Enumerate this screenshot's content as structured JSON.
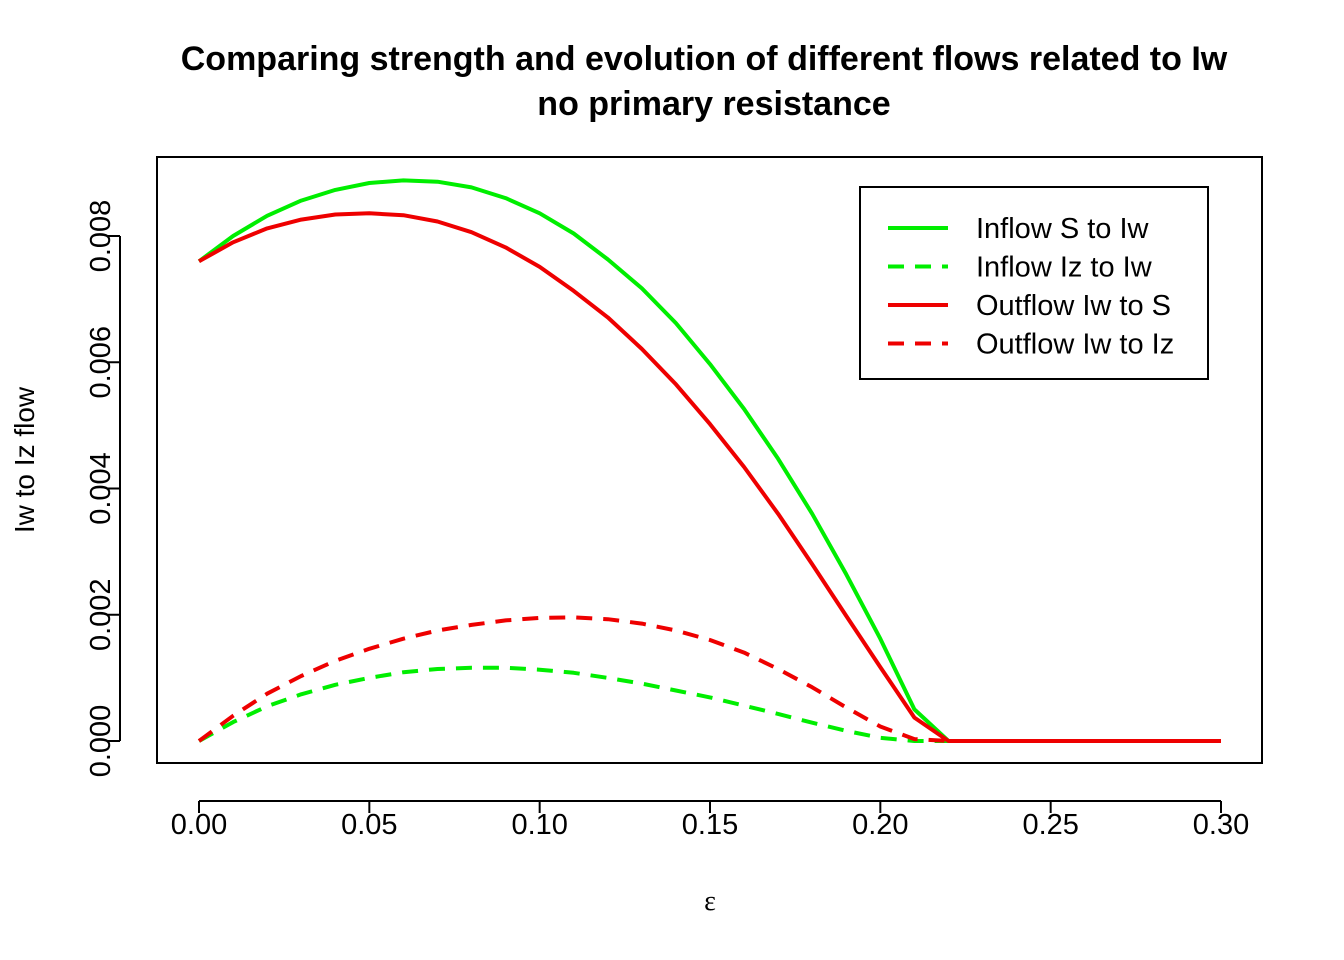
{
  "chart_data": {
    "type": "line",
    "title": "Comparing strength and evolution of different flows related to Iw",
    "subtitle": "no primary resistance",
    "xlabel": "ε",
    "ylabel": "Iw to Iz flow",
    "xlim": [
      0.0,
      0.3
    ],
    "ylim": [
      0.0,
      0.009
    ],
    "x_ticks": [
      "0.00",
      "0.05",
      "0.10",
      "0.15",
      "0.20",
      "0.25",
      "0.30"
    ],
    "y_ticks": [
      "0.000",
      "0.002",
      "0.004",
      "0.006",
      "0.008"
    ],
    "grid": false,
    "legend_position": "top-right",
    "x": [
      0.0,
      0.01,
      0.02,
      0.03,
      0.04,
      0.05,
      0.06,
      0.07,
      0.08,
      0.09,
      0.1,
      0.11,
      0.12,
      0.13,
      0.14,
      0.15,
      0.16,
      0.17,
      0.18,
      0.19,
      0.2,
      0.21,
      0.22,
      0.23,
      0.24,
      0.25,
      0.26,
      0.27,
      0.28,
      0.29,
      0.3
    ],
    "series": [
      {
        "name": "Inflow S to Iw",
        "color": "#00ee00",
        "dash": "solid",
        "values": [
          0.0076,
          0.008,
          0.00832,
          0.00856,
          0.00873,
          0.00884,
          0.00888,
          0.00886,
          0.00877,
          0.0086,
          0.00836,
          0.00804,
          0.00763,
          0.00717,
          0.00662,
          0.00597,
          0.00526,
          0.00447,
          0.0036,
          0.00264,
          0.00162,
          0.0005,
          0.0,
          0.0,
          0.0,
          0.0,
          0.0,
          0.0,
          0.0,
          0.0,
          0.0
        ]
      },
      {
        "name": "Inflow Iz to Iw",
        "color": "#00ee00",
        "dash": "dashed",
        "values": [
          0.0,
          0.0003,
          0.00055,
          0.00074,
          0.00089,
          0.001,
          0.00109,
          0.00114,
          0.00116,
          0.00116,
          0.00113,
          0.00108,
          0.001,
          0.00091,
          0.0008,
          0.00069,
          0.00056,
          0.00043,
          0.00029,
          0.00016,
          5e-05,
          0.0,
          0.0,
          0.0,
          0.0,
          0.0,
          0.0,
          0.0,
          0.0,
          0.0,
          0.0
        ]
      },
      {
        "name": "Outflow Iw to S",
        "color": "#ee0000",
        "dash": "solid",
        "values": [
          0.0076,
          0.0079,
          0.00812,
          0.00826,
          0.00834,
          0.00836,
          0.00833,
          0.00823,
          0.00806,
          0.00782,
          0.00751,
          0.00713,
          0.00671,
          0.00621,
          0.00565,
          0.00502,
          0.00434,
          0.0036,
          0.0028,
          0.00198,
          0.00117,
          0.00037,
          0.0,
          0.0,
          0.0,
          0.0,
          0.0,
          0.0,
          0.0,
          0.0,
          0.0
        ]
      },
      {
        "name": "Outflow Iw to Iz",
        "color": "#ee0000",
        "dash": "dashed",
        "values": [
          0.0,
          0.0004,
          0.00075,
          0.00103,
          0.00127,
          0.00146,
          0.00162,
          0.00175,
          0.00184,
          0.00191,
          0.00195,
          0.00196,
          0.00193,
          0.00186,
          0.00175,
          0.0016,
          0.0014,
          0.00114,
          0.00085,
          0.00053,
          0.00023,
          3e-05,
          0.0,
          0.0,
          0.0,
          0.0,
          0.0,
          0.0,
          0.0,
          0.0,
          0.0
        ]
      }
    ]
  }
}
